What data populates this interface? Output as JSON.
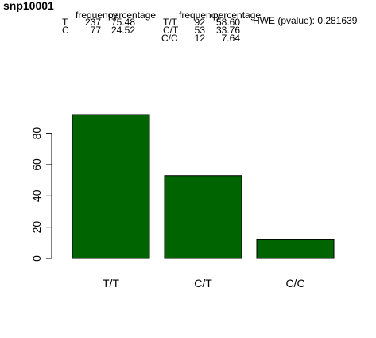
{
  "title": "snp10001",
  "allele_table": {
    "headers": [
      "frequency",
      "percentage"
    ],
    "rows": [
      {
        "allele": "T",
        "frequency": "237",
        "percentage": "75.48"
      },
      {
        "allele": "C",
        "frequency": "77",
        "percentage": "24.52"
      }
    ]
  },
  "genotype_table": {
    "headers": [
      "frequency",
      "percentage"
    ],
    "rows": [
      {
        "genotype": "T/T",
        "frequency": "92",
        "percentage": "58.60"
      },
      {
        "genotype": "C/T",
        "frequency": "53",
        "percentage": "33.76"
      },
      {
        "genotype": "C/C",
        "frequency": "12",
        "percentage": "7.64"
      }
    ]
  },
  "hwe_text": "HWE (pvalue): 0.281639",
  "chart_data": {
    "type": "bar",
    "categories": [
      "T/T",
      "C/T",
      "C/C"
    ],
    "values": [
      92,
      53,
      12
    ],
    "ylim": [
      0,
      92
    ],
    "yticks": [
      0,
      20,
      40,
      60,
      80
    ],
    "bar_color": "#006400",
    "grid": false,
    "legend": "none",
    "xlabel": "",
    "ylabel": ""
  }
}
